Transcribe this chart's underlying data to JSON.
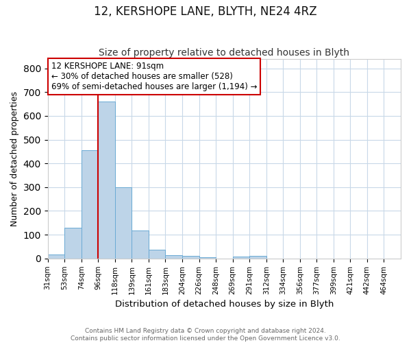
{
  "title1": "12, KERSHOPE LANE, BLYTH, NE24 4RZ",
  "title2": "Size of property relative to detached houses in Blyth",
  "xlabel": "Distribution of detached houses by size in Blyth",
  "ylabel": "Number of detached properties",
  "bar_labels": [
    "31sqm",
    "53sqm",
    "74sqm",
    "96sqm",
    "118sqm",
    "139sqm",
    "161sqm",
    "183sqm",
    "204sqm",
    "226sqm",
    "248sqm",
    "269sqm",
    "291sqm",
    "312sqm",
    "334sqm",
    "356sqm",
    "377sqm",
    "399sqm",
    "421sqm",
    "442sqm",
    "464sqm"
  ],
  "bar_heights": [
    18,
    128,
    455,
    660,
    300,
    117,
    37,
    15,
    10,
    5,
    0,
    8,
    10,
    0,
    0,
    0,
    0,
    0,
    0,
    0,
    0
  ],
  "bar_color": "#bdd4e8",
  "bar_edge_color": "#6aaad4",
  "property_line_x": 3,
  "bin_width": 1,
  "ylim": [
    0,
    840
  ],
  "yticks": [
    0,
    100,
    200,
    300,
    400,
    500,
    600,
    700,
    800
  ],
  "annotation_text": "12 KERSHOPE LANE: 91sqm\n← 30% of detached houses are smaller (528)\n69% of semi-detached houses are larger (1,194) →",
  "annotation_box_color": "#ffffff",
  "annotation_box_edge": "#cc0000",
  "red_line_color": "#cc0000",
  "footer1": "Contains HM Land Registry data © Crown copyright and database right 2024.",
  "footer2": "Contains public sector information licensed under the Open Government Licence v3.0.",
  "background_color": "#ffffff",
  "grid_color": "#c8d8e8",
  "title1_fontsize": 12,
  "title2_fontsize": 10
}
